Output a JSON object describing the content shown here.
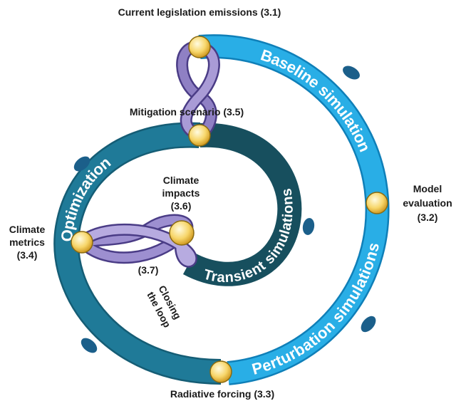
{
  "labels": {
    "current_legislation": "Current legislation emissions (3.1)",
    "mitigation": "Mitigation scenario (3.5)",
    "model_evaluation": [
      "Model",
      "evaluation",
      "(3.2)"
    ],
    "radiative_forcing": "Radiative forcing (3.3)",
    "climate_metrics": [
      "Climate",
      "metrics",
      "(3.4)"
    ],
    "climate_impacts": [
      "Climate",
      "impacts",
      "(3.6)"
    ],
    "closing_number": "(3.7)",
    "closing": [
      "Closing",
      "the loop"
    ]
  },
  "bands": {
    "baseline": "Baseline simulation",
    "perturbation": "Perturbation simulations",
    "optimization": "Optimization",
    "transient": "Transient simulations"
  }
}
